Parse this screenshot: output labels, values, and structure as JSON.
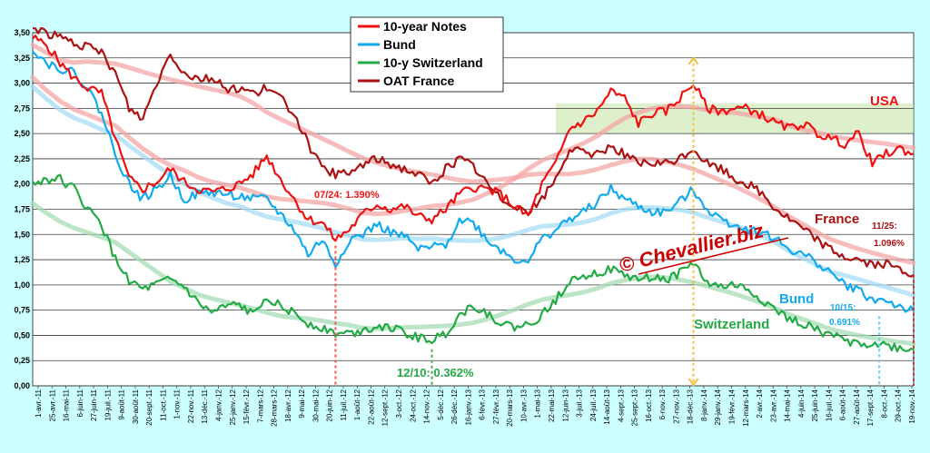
{
  "chart_data": {
    "type": "line",
    "title": "",
    "xlabel": "",
    "ylabel": "",
    "ylim": [
      0,
      3.5
    ],
    "yticks": [
      "0,00",
      "0,25",
      "0,50",
      "0,75",
      "1,00",
      "1,25",
      "1,50",
      "1,75",
      "2,00",
      "2,25",
      "2,50",
      "2,75",
      "3,00",
      "3,25",
      "3,50"
    ],
    "xticks": [
      "1-avr.-11",
      "25-avr.-11",
      "16-mai-11",
      "6-juin-11",
      "27-juin-11",
      "19-juil.-11",
      "9-août-11",
      "30-août-11",
      "20-sept.-11",
      "11-oct.-11",
      "1-nov.-11",
      "22-nov.-11",
      "13-déc.-11",
      "4-janv.-12",
      "25-janv.-12",
      "15-févr.-12",
      "7-mars-12",
      "28-mars-12",
      "18-avr.-12",
      "9-mai-12",
      "30-mai-12",
      "20-juin-12",
      "11-juil.-12",
      "1-août-12",
      "22-août-12",
      "12-sept.-12",
      "3-oct.-12",
      "24-oct.-12",
      "14-nov.-12",
      "5-déc.-12",
      "26-déc.-12",
      "16-janv.-13",
      "6-févr.-13",
      "27-févr.-13",
      "20-mars-13",
      "10-avr.-13",
      "1-mai-13",
      "22-mai-13",
      "12-juin-13",
      "3-juil.-13",
      "24-juil.-13",
      "14-août-13",
      "4-sept.-13",
      "25-sept.-13",
      "16-oct.-13",
      "6-nov.-13",
      "27-nov.-13",
      "18-déc.-13",
      "8-janv.-14",
      "29-janv.-14",
      "19-févr.-14",
      "12-mars-14",
      "2-avr.-14",
      "23-avr.-14",
      "14-mai-14",
      "4-juin-14",
      "25-juin-14",
      "16-juil.-14",
      "6-août-14",
      "27-août-14",
      "17-sept.-14",
      "8-oct.-14",
      "29-oct.-14",
      "19-nov.-14"
    ],
    "grid": true,
    "legend_position": "top-center",
    "usa_band": [
      2.5,
      2.8
    ],
    "series": [
      {
        "name": "10-year Notes",
        "color": "#ee1111",
        "values": [
          3.45,
          3.38,
          3.2,
          3.05,
          2.95,
          2.9,
          2.45,
          2.05,
          1.95,
          2.02,
          2.15,
          2.02,
          1.95,
          1.92,
          1.95,
          2.0,
          2.1,
          2.28,
          2.05,
          1.85,
          1.65,
          1.62,
          1.45,
          1.55,
          1.7,
          1.8,
          1.75,
          1.78,
          1.68,
          1.65,
          1.75,
          1.9,
          1.97,
          1.95,
          1.9,
          1.78,
          1.68,
          2.0,
          2.2,
          2.55,
          2.62,
          2.72,
          2.92,
          2.85,
          2.6,
          2.7,
          2.72,
          2.85,
          3.0,
          2.75,
          2.72,
          2.75,
          2.75,
          2.68,
          2.6,
          2.55,
          2.6,
          2.5,
          2.45,
          2.4,
          2.5,
          2.2,
          2.3,
          2.35,
          2.3
        ]
      },
      {
        "name": "Bund",
        "color": "#11aaee",
        "values": [
          3.35,
          3.2,
          3.15,
          3.1,
          2.95,
          2.7,
          2.3,
          2.0,
          1.85,
          1.95,
          2.08,
          1.85,
          1.9,
          1.92,
          1.9,
          1.88,
          1.85,
          1.85,
          1.7,
          1.55,
          1.3,
          1.45,
          1.2,
          1.45,
          1.5,
          1.6,
          1.52,
          1.48,
          1.35,
          1.37,
          1.4,
          1.65,
          1.62,
          1.45,
          1.35,
          1.25,
          1.25,
          1.45,
          1.55,
          1.65,
          1.72,
          1.82,
          1.95,
          1.85,
          1.78,
          1.72,
          1.72,
          1.82,
          1.95,
          1.75,
          1.65,
          1.6,
          1.55,
          1.52,
          1.45,
          1.35,
          1.3,
          1.22,
          1.12,
          1.0,
          0.95,
          0.85,
          0.85,
          0.78,
          0.74
        ]
      },
      {
        "name": "10-y Switzerland",
        "color": "#22aa44",
        "values": [
          2.0,
          2.05,
          2.05,
          1.95,
          1.75,
          1.6,
          1.25,
          1.05,
          0.95,
          1.0,
          1.05,
          0.98,
          0.82,
          0.72,
          0.78,
          0.8,
          0.7,
          0.9,
          0.78,
          0.72,
          0.62,
          0.58,
          0.52,
          0.52,
          0.55,
          0.6,
          0.58,
          0.52,
          0.48,
          0.45,
          0.52,
          0.7,
          0.8,
          0.72,
          0.62,
          0.58,
          0.6,
          0.7,
          0.85,
          1.05,
          1.1,
          1.12,
          1.15,
          1.1,
          1.05,
          1.08,
          1.05,
          1.12,
          1.22,
          1.02,
          0.98,
          1.0,
          0.95,
          0.85,
          0.75,
          0.65,
          0.62,
          0.55,
          0.5,
          0.45,
          0.42,
          0.42,
          0.4,
          0.37,
          0.36
        ]
      },
      {
        "name": "OAT France",
        "color": "#aa1111",
        "values": [
          3.55,
          3.5,
          3.45,
          3.4,
          3.35,
          3.3,
          3.1,
          2.75,
          2.65,
          3.0,
          3.3,
          3.1,
          3.05,
          3.05,
          2.95,
          2.95,
          2.9,
          2.95,
          2.85,
          2.7,
          2.4,
          2.15,
          2.1,
          2.1,
          2.2,
          2.25,
          2.2,
          2.15,
          2.1,
          2.0,
          2.15,
          2.25,
          2.18,
          2.0,
          1.85,
          1.8,
          1.72,
          1.85,
          2.05,
          2.35,
          2.3,
          2.3,
          2.38,
          2.3,
          2.2,
          2.2,
          2.2,
          2.25,
          2.35,
          2.2,
          2.15,
          2.05,
          2.0,
          1.9,
          1.75,
          1.65,
          1.55,
          1.45,
          1.35,
          1.28,
          1.25,
          1.2,
          1.2,
          1.15,
          1.1
        ]
      }
    ],
    "annotations": {
      "usa_label": "USA",
      "france_label": "France",
      "bund_label": "Bund",
      "switzerland_label": "Switzerland",
      "us_low": "07/24: 1.390%",
      "swiss_low": "12/10:  0.362%",
      "france_last_date": "11/25:",
      "france_last_value": "1.096%",
      "bund_last_date": "10/15:",
      "bund_last_value": "0.691%",
      "watermark": "© Chevallier.biz"
    }
  }
}
